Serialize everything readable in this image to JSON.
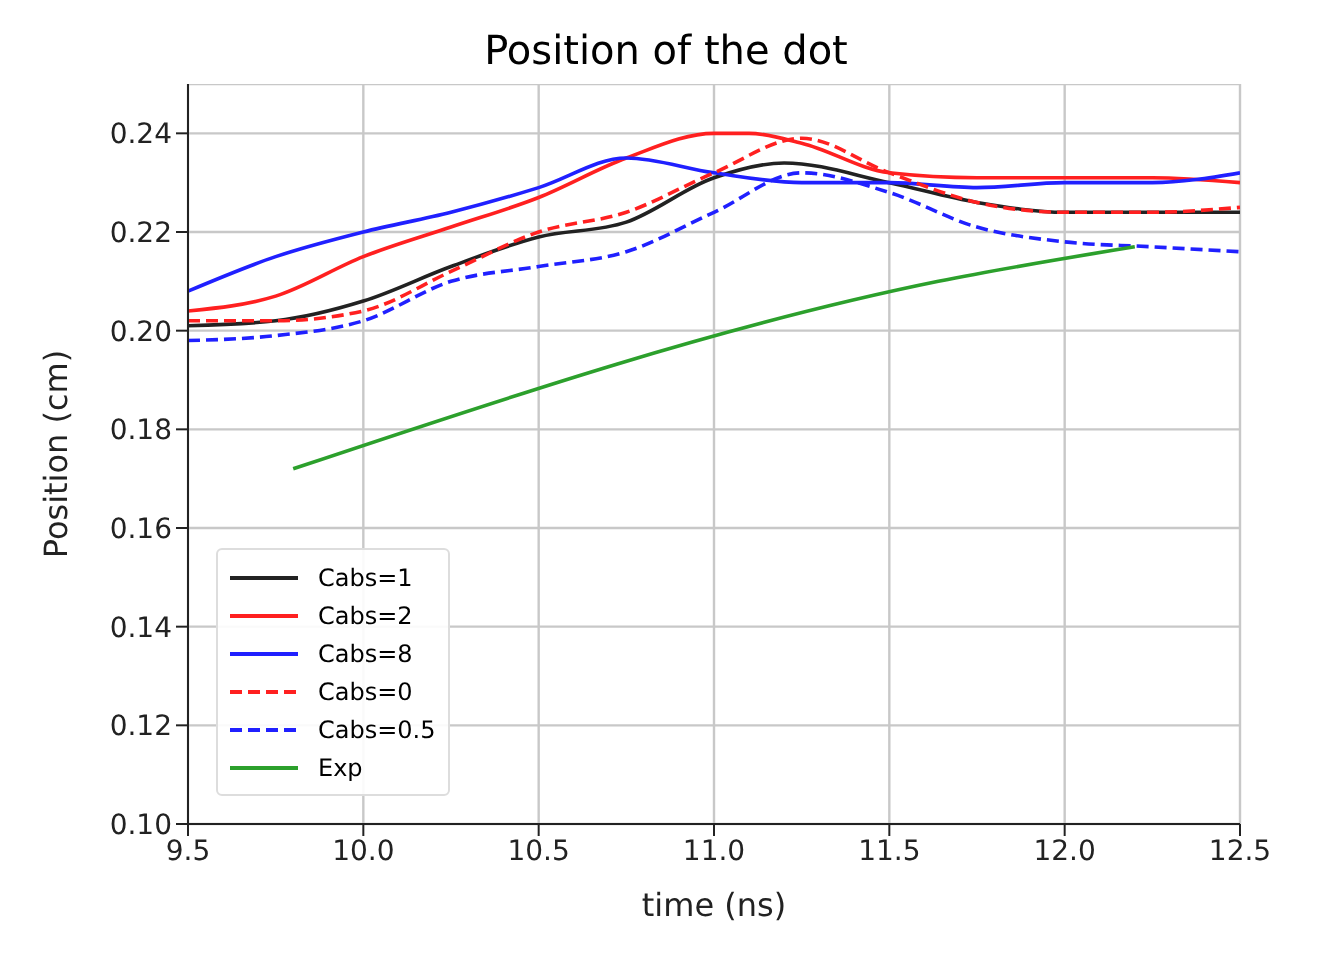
{
  "chart_data": {
    "type": "line",
    "title": "Position of the dot",
    "xlabel": "time (ns)",
    "ylabel": "Position (cm)",
    "xlim": [
      9.5,
      12.5
    ],
    "xticks": [
      {
        "value": 9.5,
        "label": "9.5"
      },
      {
        "value": 10,
        "label": "10.0"
      },
      {
        "value": 10.5,
        "label": "10.5"
      },
      {
        "value": 11,
        "label": "11.0"
      },
      {
        "value": 11.5,
        "label": "11.5"
      },
      {
        "value": 12,
        "label": "12.0"
      },
      {
        "value": 12.5,
        "label": "12.5"
      }
    ],
    "ylim": [
      0.1,
      0.25
    ],
    "yticks": [
      {
        "value": 0.1,
        "label": "0.10"
      },
      {
        "value": 0.12,
        "label": "0.12"
      },
      {
        "value": 0.14,
        "label": "0.14"
      },
      {
        "value": 0.16,
        "label": "0.16"
      },
      {
        "value": 0.18,
        "label": "0.18"
      },
      {
        "value": 0.2,
        "label": "0.20"
      },
      {
        "value": 0.22,
        "label": "0.22"
      },
      {
        "value": 0.24,
        "label": "0.24"
      }
    ],
    "grid": true,
    "legend": "bottom left",
    "marker": "none",
    "series": [
      {
        "name": "Cabs=1",
        "color": "#222222",
        "line_style": "solid",
        "x": [
          9.5,
          9.75,
          10,
          10.25,
          10.5,
          10.75,
          11,
          11.2,
          11.5,
          11.75,
          12,
          12.25,
          12.5
        ],
        "values": [
          0.201,
          0.202,
          0.206,
          0.213,
          0.219,
          0.222,
          0.231,
          0.234,
          0.23,
          0.226,
          0.224,
          0.224,
          0.224
        ]
      },
      {
        "name": "Cabs=2",
        "color": "#ff2020",
        "line_style": "solid",
        "x": [
          9.5,
          9.75,
          10,
          10.25,
          10.5,
          10.75,
          11,
          11.1,
          11.25,
          11.5,
          11.75,
          12,
          12.25,
          12.5
        ],
        "values": [
          0.204,
          0.207,
          0.215,
          0.221,
          0.227,
          0.235,
          0.24,
          0.24,
          0.238,
          0.232,
          0.231,
          0.231,
          0.231,
          0.23
        ]
      },
      {
        "name": "Cabs=8",
        "color": "#2020ff",
        "line_style": "solid",
        "x": [
          9.5,
          9.75,
          10,
          10.25,
          10.5,
          10.75,
          11,
          11.25,
          11.5,
          11.75,
          12,
          12.25,
          12.5
        ],
        "values": [
          0.208,
          0.215,
          0.22,
          0.224,
          0.229,
          0.235,
          0.232,
          0.23,
          0.23,
          0.229,
          0.23,
          0.23,
          0.232
        ]
      },
      {
        "name": "Cabs=0",
        "color": "#ff2020",
        "line_style": "dashed",
        "x": [
          9.5,
          9.75,
          10,
          10.25,
          10.5,
          10.75,
          11,
          11.25,
          11.5,
          11.75,
          12,
          12.25,
          12.5
        ],
        "values": [
          0.202,
          0.202,
          0.204,
          0.212,
          0.22,
          0.224,
          0.232,
          0.239,
          0.232,
          0.226,
          0.224,
          0.224,
          0.225
        ]
      },
      {
        "name": "Cabs=0.5",
        "color": "#2020ff",
        "line_style": "dashed",
        "x": [
          9.5,
          9.75,
          10,
          10.25,
          10.5,
          10.75,
          11,
          11.25,
          11.5,
          11.75,
          12,
          12.25,
          12.5
        ],
        "values": [
          0.198,
          0.199,
          0.202,
          0.21,
          0.213,
          0.216,
          0.224,
          0.232,
          0.228,
          0.221,
          0.218,
          0.217,
          0.216
        ]
      },
      {
        "name": "Exp",
        "color": "#2ca02c",
        "line_style": "solid",
        "x": [
          9.8,
          11.64,
          12.2
        ],
        "values": [
          0.172,
          0.21,
          0.217
        ]
      }
    ]
  }
}
